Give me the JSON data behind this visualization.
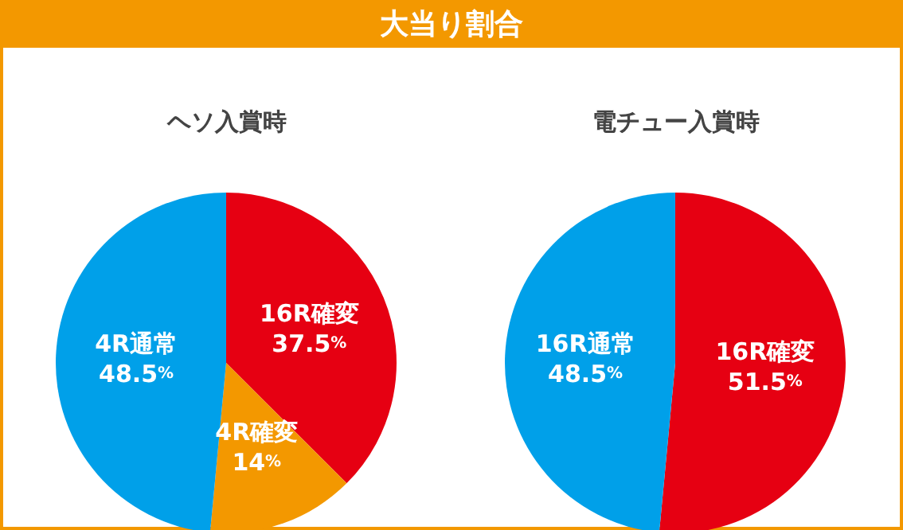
{
  "chart_data": [
    {
      "type": "other",
      "title": "大当り割合"
    },
    {
      "type": "pie",
      "title": "ヘソ入賞時",
      "categories": [
        "16R確変",
        "4R確変",
        "4R通常"
      ],
      "values": [
        37.5,
        14,
        48.5
      ],
      "colors": [
        "#e60012",
        "#f39800",
        "#00a0e9"
      ],
      "value_labels": [
        "37.5%",
        "14%",
        "48.5%"
      ]
    },
    {
      "type": "pie",
      "title": "電チュー入賞時",
      "categories": [
        "16R確変",
        "16R通常"
      ],
      "values": [
        51.5,
        48.5
      ],
      "colors": [
        "#e60012",
        "#00a0e9"
      ],
      "value_labels": [
        "51.5%",
        "48.5%"
      ]
    }
  ]
}
